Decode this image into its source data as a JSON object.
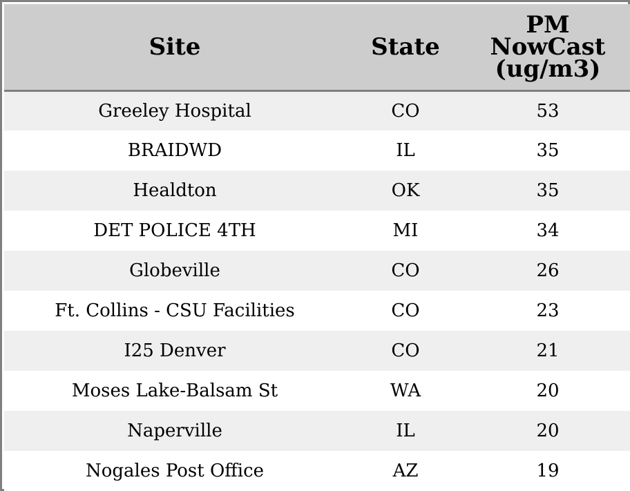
{
  "chart_data": {
    "type": "table",
    "columns": [
      "Site",
      "State",
      "PM NowCast (ug/m3)"
    ],
    "header_lines": {
      "site": [
        "Site"
      ],
      "state": [
        "State"
      ],
      "pm": [
        "PM",
        "NowCast",
        "(ug/m3)"
      ]
    },
    "rows": [
      {
        "site": "Greeley Hospital",
        "state": "CO",
        "pm": "53"
      },
      {
        "site": "BRAIDWD",
        "state": "IL",
        "pm": "35"
      },
      {
        "site": "Healdton",
        "state": "OK",
        "pm": "35"
      },
      {
        "site": "DET POLICE 4TH",
        "state": "MI",
        "pm": "34"
      },
      {
        "site": "Globeville",
        "state": "CO",
        "pm": "26"
      },
      {
        "site": "Ft. Collins - CSU Facilities",
        "state": "CO",
        "pm": "23"
      },
      {
        "site": "I25 Denver",
        "state": "CO",
        "pm": "21"
      },
      {
        "site": "Moses Lake-Balsam St",
        "state": "WA",
        "pm": "20"
      },
      {
        "site": "Naperville",
        "state": "IL",
        "pm": "20"
      },
      {
        "site": "Nogales Post Office",
        "state": "AZ",
        "pm": "19"
      }
    ]
  },
  "colors": {
    "header_bg": "#cdcdcd",
    "row_stripe": "#efefef",
    "row_plain": "#ffffff",
    "border": "#808080",
    "text": "#000000"
  }
}
